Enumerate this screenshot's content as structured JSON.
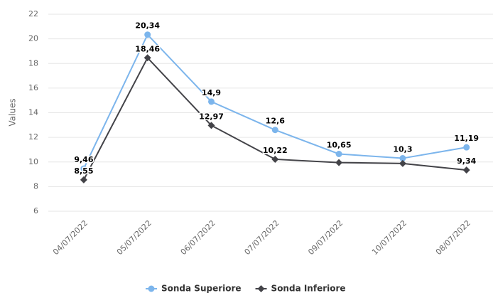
{
  "chart_data": {
    "type": "line",
    "y_label": "Values",
    "categories": [
      "04/07/2022",
      "05/07/2022",
      "06/07/2022",
      "07/07/2022",
      "09/07/2022",
      "10/07/2022",
      "08/07/2022"
    ],
    "series": [
      {
        "name": "Sonda Superiore",
        "color": "#7cb5ec",
        "marker": "circle",
        "values": [
          9.46,
          20.34,
          14.9,
          12.6,
          10.65,
          10.3,
          11.19
        ],
        "value_labels": [
          "9,46",
          "20,34",
          "14,9",
          "12,6",
          "10,65",
          "10,3",
          "11,19"
        ]
      },
      {
        "name": "Sonda Inferiore",
        "color": "#434348",
        "marker": "diamond",
        "values": [
          8.55,
          18.46,
          12.97,
          10.22,
          9.95,
          9.88,
          9.34
        ],
        "value_labels": [
          "8,55",
          "18,46",
          "12,97",
          "10,22",
          null,
          null,
          "9,34"
        ]
      }
    ],
    "ylim": [
      6,
      22
    ],
    "yticks": [
      6,
      8,
      10,
      12,
      14,
      16,
      18,
      20,
      22
    ],
    "grid": true,
    "legend": "bottom"
  }
}
